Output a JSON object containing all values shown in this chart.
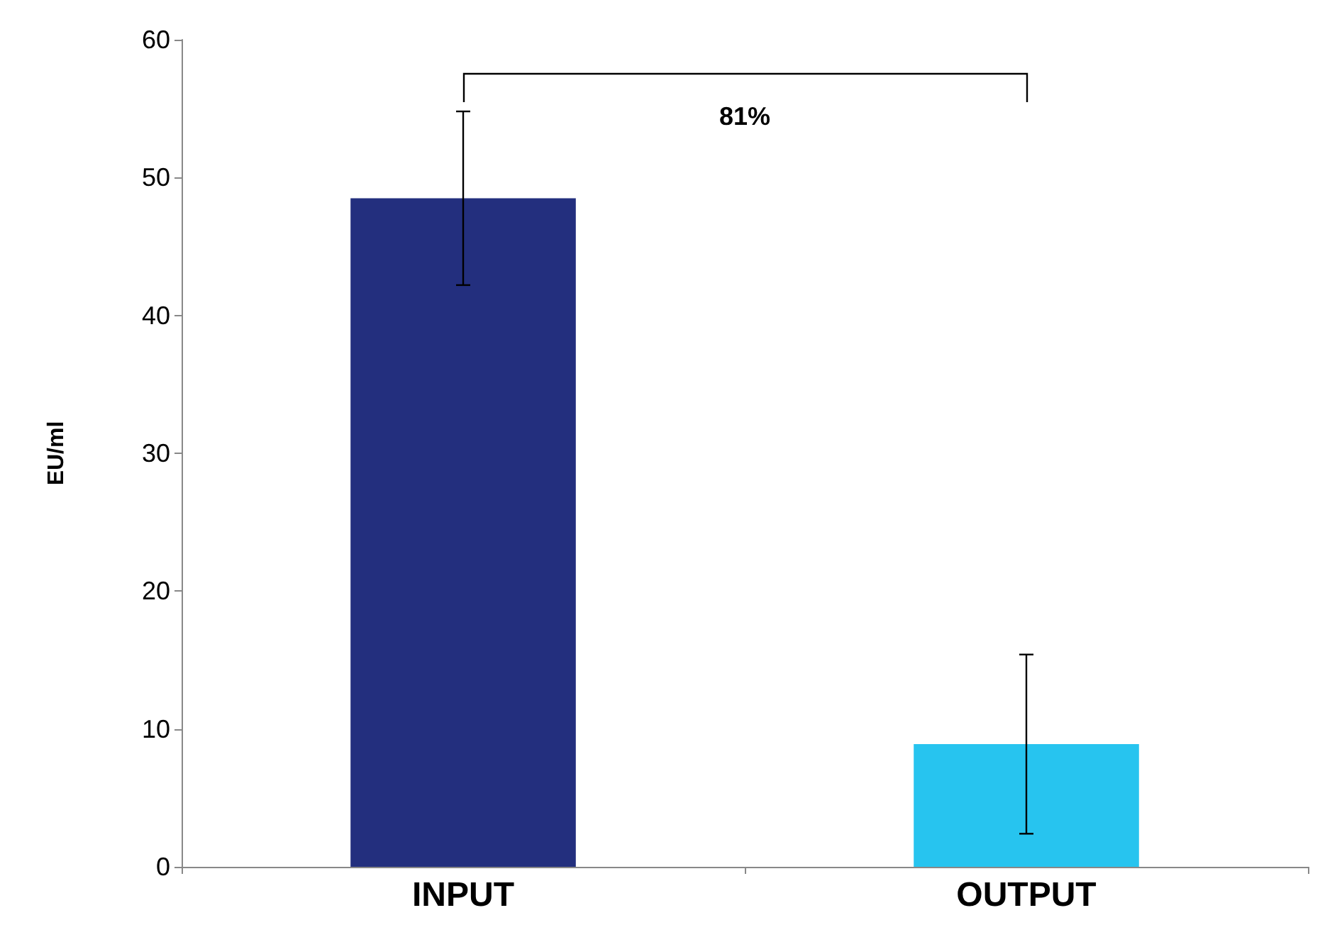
{
  "chart_data": {
    "type": "bar",
    "ylabel": "EU/ml",
    "categories": [
      "INPUT",
      "OUTPUT"
    ],
    "values": [
      48.5,
      8.9
    ],
    "colors": [
      "#232f7e",
      "#27c4ef"
    ],
    "errors": [
      6.3,
      6.5
    ],
    "ylim": [
      0,
      60
    ],
    "yticks": [
      0,
      10,
      20,
      30,
      40,
      50,
      60
    ],
    "grid": false,
    "annotations": [
      "81%"
    ]
  }
}
